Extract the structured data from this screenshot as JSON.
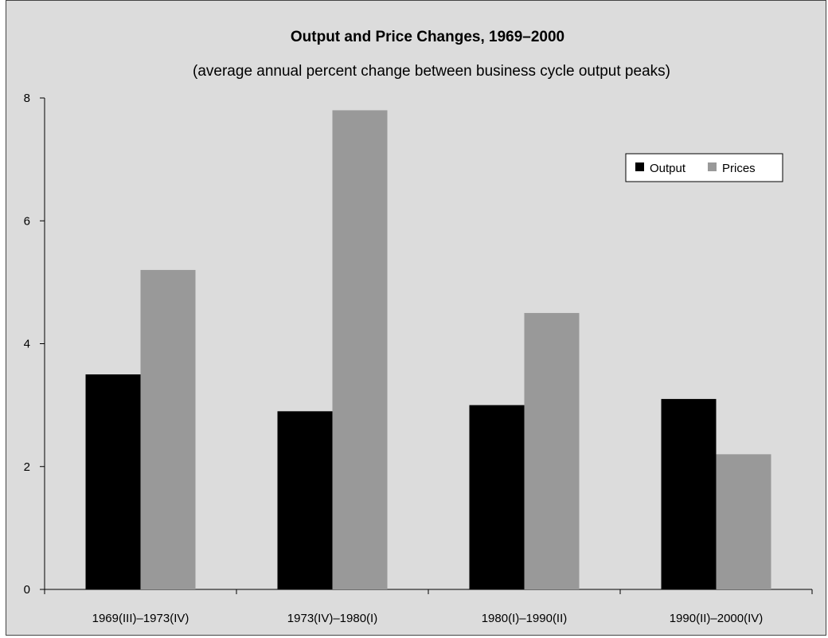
{
  "chart_data": {
    "type": "bar",
    "title": "Output and Price Changes, 1969–2000",
    "subtitle": "(average annual percent change between business cycle output peaks)",
    "categories": [
      "1969(III)–1973(IV)",
      "1973(IV)–1980(I)",
      "1980(I)–1990(II)",
      "1990(II)–2000(IV)"
    ],
    "series": [
      {
        "name": "Output",
        "values": [
          3.5,
          2.9,
          3.0,
          3.1
        ],
        "color": "#000000"
      },
      {
        "name": "Prices",
        "values": [
          5.2,
          7.8,
          4.5,
          2.2
        ],
        "color": "#999999"
      }
    ],
    "ylim": [
      0,
      8
    ],
    "yticks": [
      0,
      2,
      4,
      6,
      8
    ],
    "grid": false,
    "legend_position": "top-right",
    "background": "#dcdcdc"
  }
}
